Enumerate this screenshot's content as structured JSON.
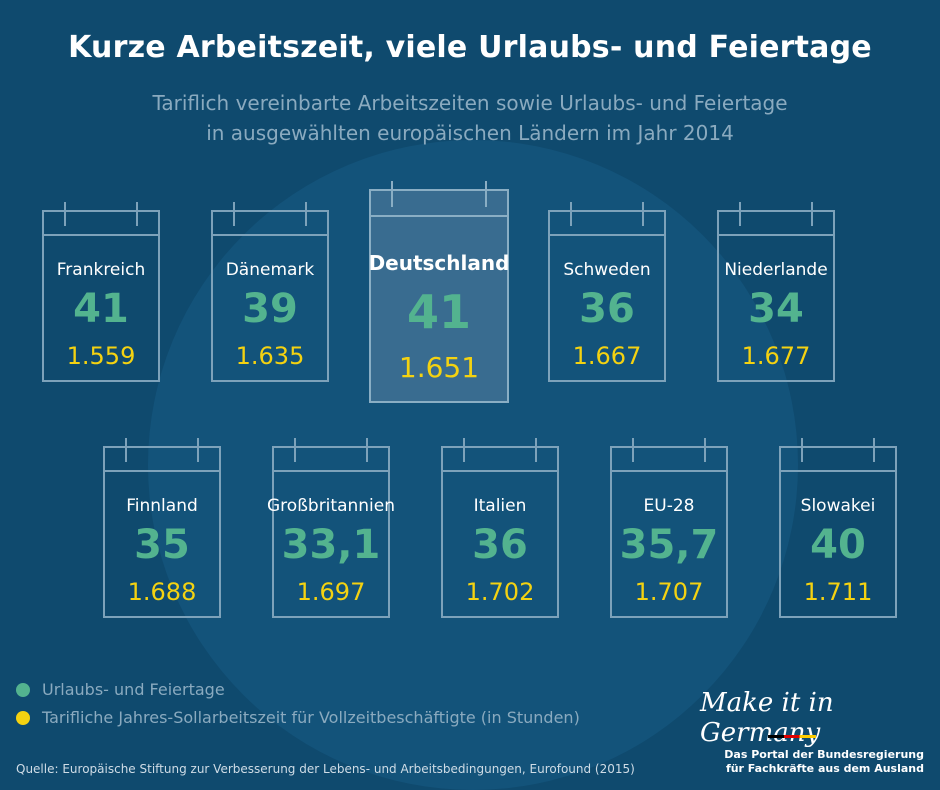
{
  "header": {
    "title": "Kurze Arbeitszeit, viele Urlaubs- und Feiertage",
    "subtitle_line1": "Tariflich vereinbarte Arbeitszeiten sowie Urlaubs- und Feiertage",
    "subtitle_line2": "in ausgewählten europäischen Ländern im Jahr 2014"
  },
  "chart_data": {
    "type": "table",
    "title": "Kurze Arbeitszeit, viele Urlaubs- und Feiertage",
    "categories": [
      "Frankreich",
      "Dänemark",
      "Deutschland",
      "Schweden",
      "Niederlande",
      "Finnland",
      "Großbritannien",
      "Italien",
      "EU-28",
      "Slowakei"
    ],
    "series": [
      {
        "name": "Urlaubs- und Feiertage",
        "color": "#53b38f",
        "values": [
          "41",
          "39",
          "41",
          "36",
          "34",
          "35",
          "33,1",
          "36",
          "35,7",
          "40"
        ]
      },
      {
        "name": "Tarifliche Jahres-Sollarbeitszeit für Vollzeitbeschäftigte (in Stunden)",
        "color": "#f4d211",
        "values": [
          "1.559",
          "1.635",
          "1.651",
          "1.667",
          "1.677",
          "1.688",
          "1.697",
          "1.702",
          "1.707",
          "1.711"
        ]
      }
    ],
    "highlighted": "Deutschland"
  },
  "legend": {
    "item1": "Urlaubs- und Feiertage",
    "item2": "Tarifliche Jahres-Sollarbeitszeit für Vollzeitbeschäftigte (in Stunden)"
  },
  "footer": {
    "source": "Quelle: Europäische Stiftung zur Verbesserung der Lebens- und Arbeitsbedingungen, Eurofound (2015)",
    "brand": "Make it in Germany",
    "portal_line1": "Das Portal der Bundesregierung",
    "portal_line2": "für Fachkräfte aus dem Ausland"
  }
}
